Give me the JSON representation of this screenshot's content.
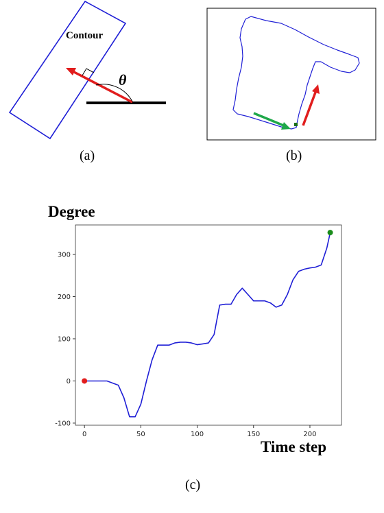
{
  "panel_a": {
    "contour_label": "Contour",
    "theta_label": "θ",
    "caption": "(a)"
  },
  "panel_b": {
    "caption": "(b)"
  },
  "panel_c": {
    "caption": "(c)",
    "colors": {
      "line": "#1f1fd6",
      "start": "#e11d1d",
      "end": "#1a8c1a"
    }
  },
  "chart_data": {
    "type": "line",
    "title": "",
    "ylabel": "Degree",
    "xlabel": "Time step",
    "xlim": [
      -8,
      228
    ],
    "ylim": [
      -105,
      370
    ],
    "x_ticks": [
      0,
      50,
      100,
      150,
      200
    ],
    "y_ticks": [
      -100,
      0,
      100,
      200,
      300
    ],
    "grid": false,
    "series": [
      {
        "x": [
          0,
          5,
          10,
          20,
          30,
          35,
          40,
          45,
          50,
          55,
          60,
          65,
          70,
          75,
          80,
          85,
          90,
          95,
          100,
          105,
          110,
          115,
          120,
          125,
          130,
          135,
          140,
          145,
          150,
          155,
          160,
          165,
          170,
          175,
          180,
          185,
          190,
          195,
          200,
          205,
          210,
          215,
          218
        ],
        "y": [
          0,
          0,
          0,
          0,
          -10,
          -40,
          -85,
          -85,
          -55,
          0,
          50,
          85,
          85,
          85,
          90,
          92,
          92,
          90,
          86,
          88,
          90,
          110,
          180,
          182,
          182,
          205,
          220,
          205,
          190,
          190,
          190,
          185,
          175,
          180,
          205,
          240,
          260,
          265,
          268,
          270,
          275,
          315,
          352
        ]
      }
    ],
    "markers": [
      {
        "x": 0,
        "y": 0,
        "role": "start"
      },
      {
        "x": 218,
        "y": 352,
        "role": "end"
      }
    ]
  }
}
